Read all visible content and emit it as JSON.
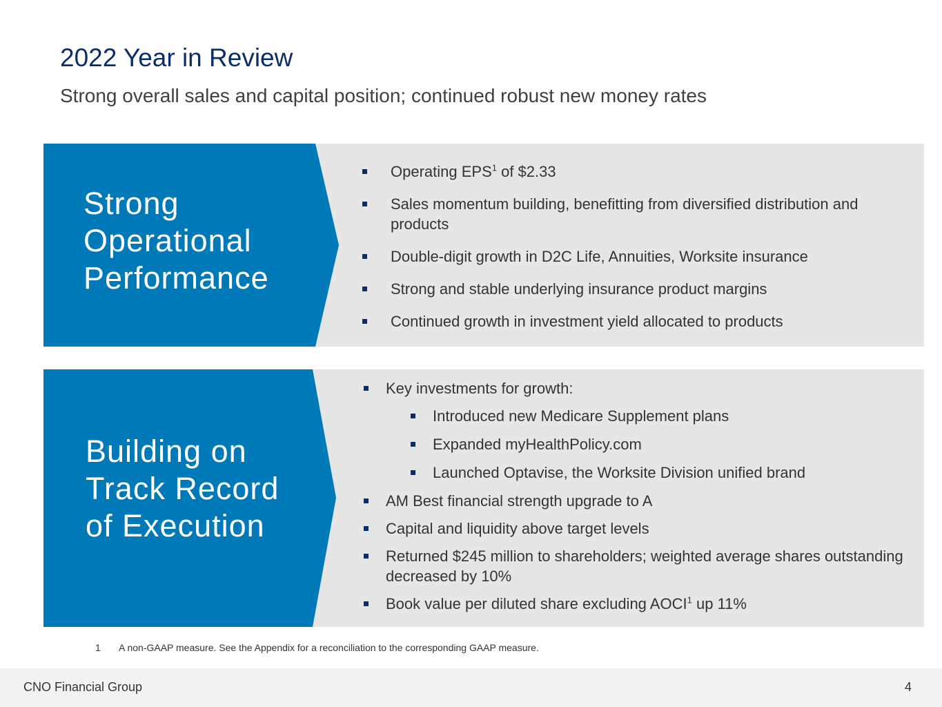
{
  "title": "2022 Year in Review",
  "subtitle": "Strong overall sales and capital position; continued robust new money rates",
  "panels": [
    {
      "heading_lines": [
        "Strong",
        "Operational",
        "Performance"
      ],
      "bullets": [
        {
          "text": "Operating EPS",
          "sup": "1",
          "text_after": " of $2.33"
        },
        {
          "text": "Sales momentum building, benefitting from diversified distribution and products"
        },
        {
          "text": "Double-digit growth in D2C Life, Annuities, Worksite insurance"
        },
        {
          "text": "Strong and stable underlying insurance product margins"
        },
        {
          "text": "Continued growth in investment yield allocated to products"
        }
      ]
    },
    {
      "heading_lines": [
        "Building on",
        "Track Record",
        "of Execution"
      ],
      "bullets": [
        {
          "text": "Key investments for growth:"
        },
        {
          "text": "Introduced new Medicare Supplement plans",
          "level": 2
        },
        {
          "text": "Expanded myHealthPolicy.com",
          "level": 2
        },
        {
          "text": "Launched Optavise, the Worksite Division unified brand",
          "level": 2
        },
        {
          "text": "AM Best financial strength upgrade to A"
        },
        {
          "text": "Capital and liquidity above target levels"
        },
        {
          "text": "Returned $245 million to shareholders; weighted average shares outstanding decreased by 10%"
        },
        {
          "text": "Book value per diluted share excluding AOCI",
          "sup": "1",
          "text_after": " up 11%"
        }
      ]
    }
  ],
  "footnote": {
    "number": "1",
    "text": "A non-GAAP measure. See the Appendix for a reconciliation to the corresponding GAAP measure."
  },
  "footer": {
    "company": "CNO Financial Group",
    "page_number": "4"
  },
  "colors": {
    "title": "#0b2e6b",
    "chevron": "#0079b9",
    "panel": "#e6e6e6",
    "bullet": "#0b2e6b"
  }
}
